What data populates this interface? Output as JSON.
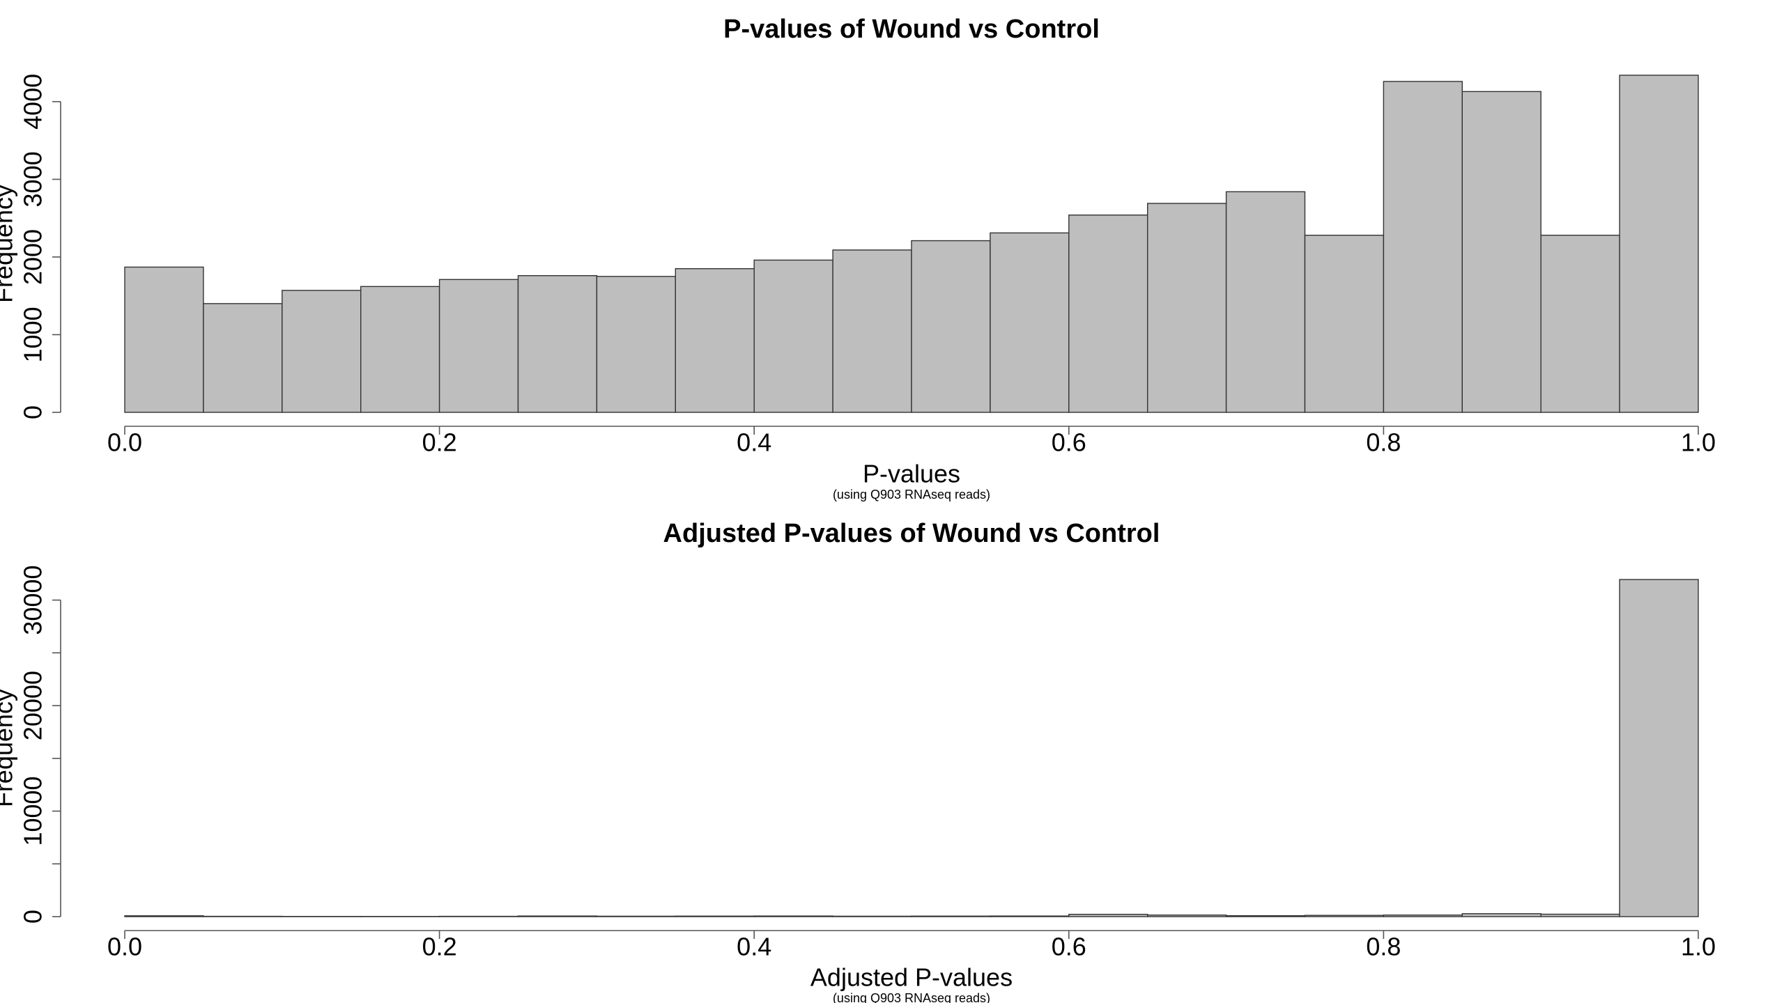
{
  "chart_data": [
    {
      "type": "histogram",
      "title": "P-values of Wound vs Control",
      "xlabel": "P-values",
      "subtitle": "(using Q903 RNAseq reads)",
      "ylabel": "Frequency",
      "bins": [
        0,
        0.05,
        0.1,
        0.15,
        0.2,
        0.25,
        0.3,
        0.35,
        0.4,
        0.45,
        0.5,
        0.55,
        0.6,
        0.65,
        0.7,
        0.75,
        0.8,
        0.85,
        0.9,
        0.95,
        1
      ],
      "values": [
        1870,
        1400,
        1570,
        1620,
        1710,
        1760,
        1750,
        1850,
        1960,
        2090,
        2210,
        2310,
        2540,
        2690,
        2840,
        2280,
        4260,
        4130,
        2280,
        4340
      ],
      "color": "#bebebe",
      "xlim": [
        0,
        1
      ],
      "ylim": [
        0,
        4340
      ],
      "xticks": [
        {
          "value": 0,
          "label": "0.0"
        },
        0.2,
        0.4,
        0.6,
        0.8,
        {
          "value": 1,
          "label": "1.0"
        }
      ],
      "yticks": [
        0,
        1000,
        2000,
        3000,
        4000
      ]
    },
    {
      "type": "histogram",
      "title": "Adjusted P-values of Wound vs Control",
      "xlabel": "Adjusted P-values",
      "subtitle": "(using Q903 RNAseq reads)",
      "ylabel": "Frequency",
      "bins": [
        0,
        0.05,
        0.1,
        0.15,
        0.2,
        0.25,
        0.3,
        0.35,
        0.4,
        0.45,
        0.5,
        0.55,
        0.6,
        0.65,
        0.7,
        0.75,
        0.8,
        0.85,
        0.9,
        0.95,
        1
      ],
      "values": [
        80,
        30,
        20,
        20,
        30,
        60,
        40,
        50,
        60,
        40,
        50,
        60,
        220,
        150,
        90,
        120,
        150,
        280,
        230,
        31950
      ],
      "color": "#bebebe",
      "xlim": [
        0,
        1
      ],
      "ylim": [
        0,
        31950
      ],
      "xticks": [
        {
          "value": 0,
          "label": "0.0"
        },
        0.2,
        0.4,
        0.6,
        0.8,
        {
          "value": 1,
          "label": "1.0"
        }
      ],
      "yticks": [
        0,
        {
          "value": 5000,
          "label": null
        },
        10000,
        {
          "value": 15000,
          "label": null
        },
        20000,
        {
          "value": 25000,
          "label": null
        },
        30000
      ]
    }
  ]
}
